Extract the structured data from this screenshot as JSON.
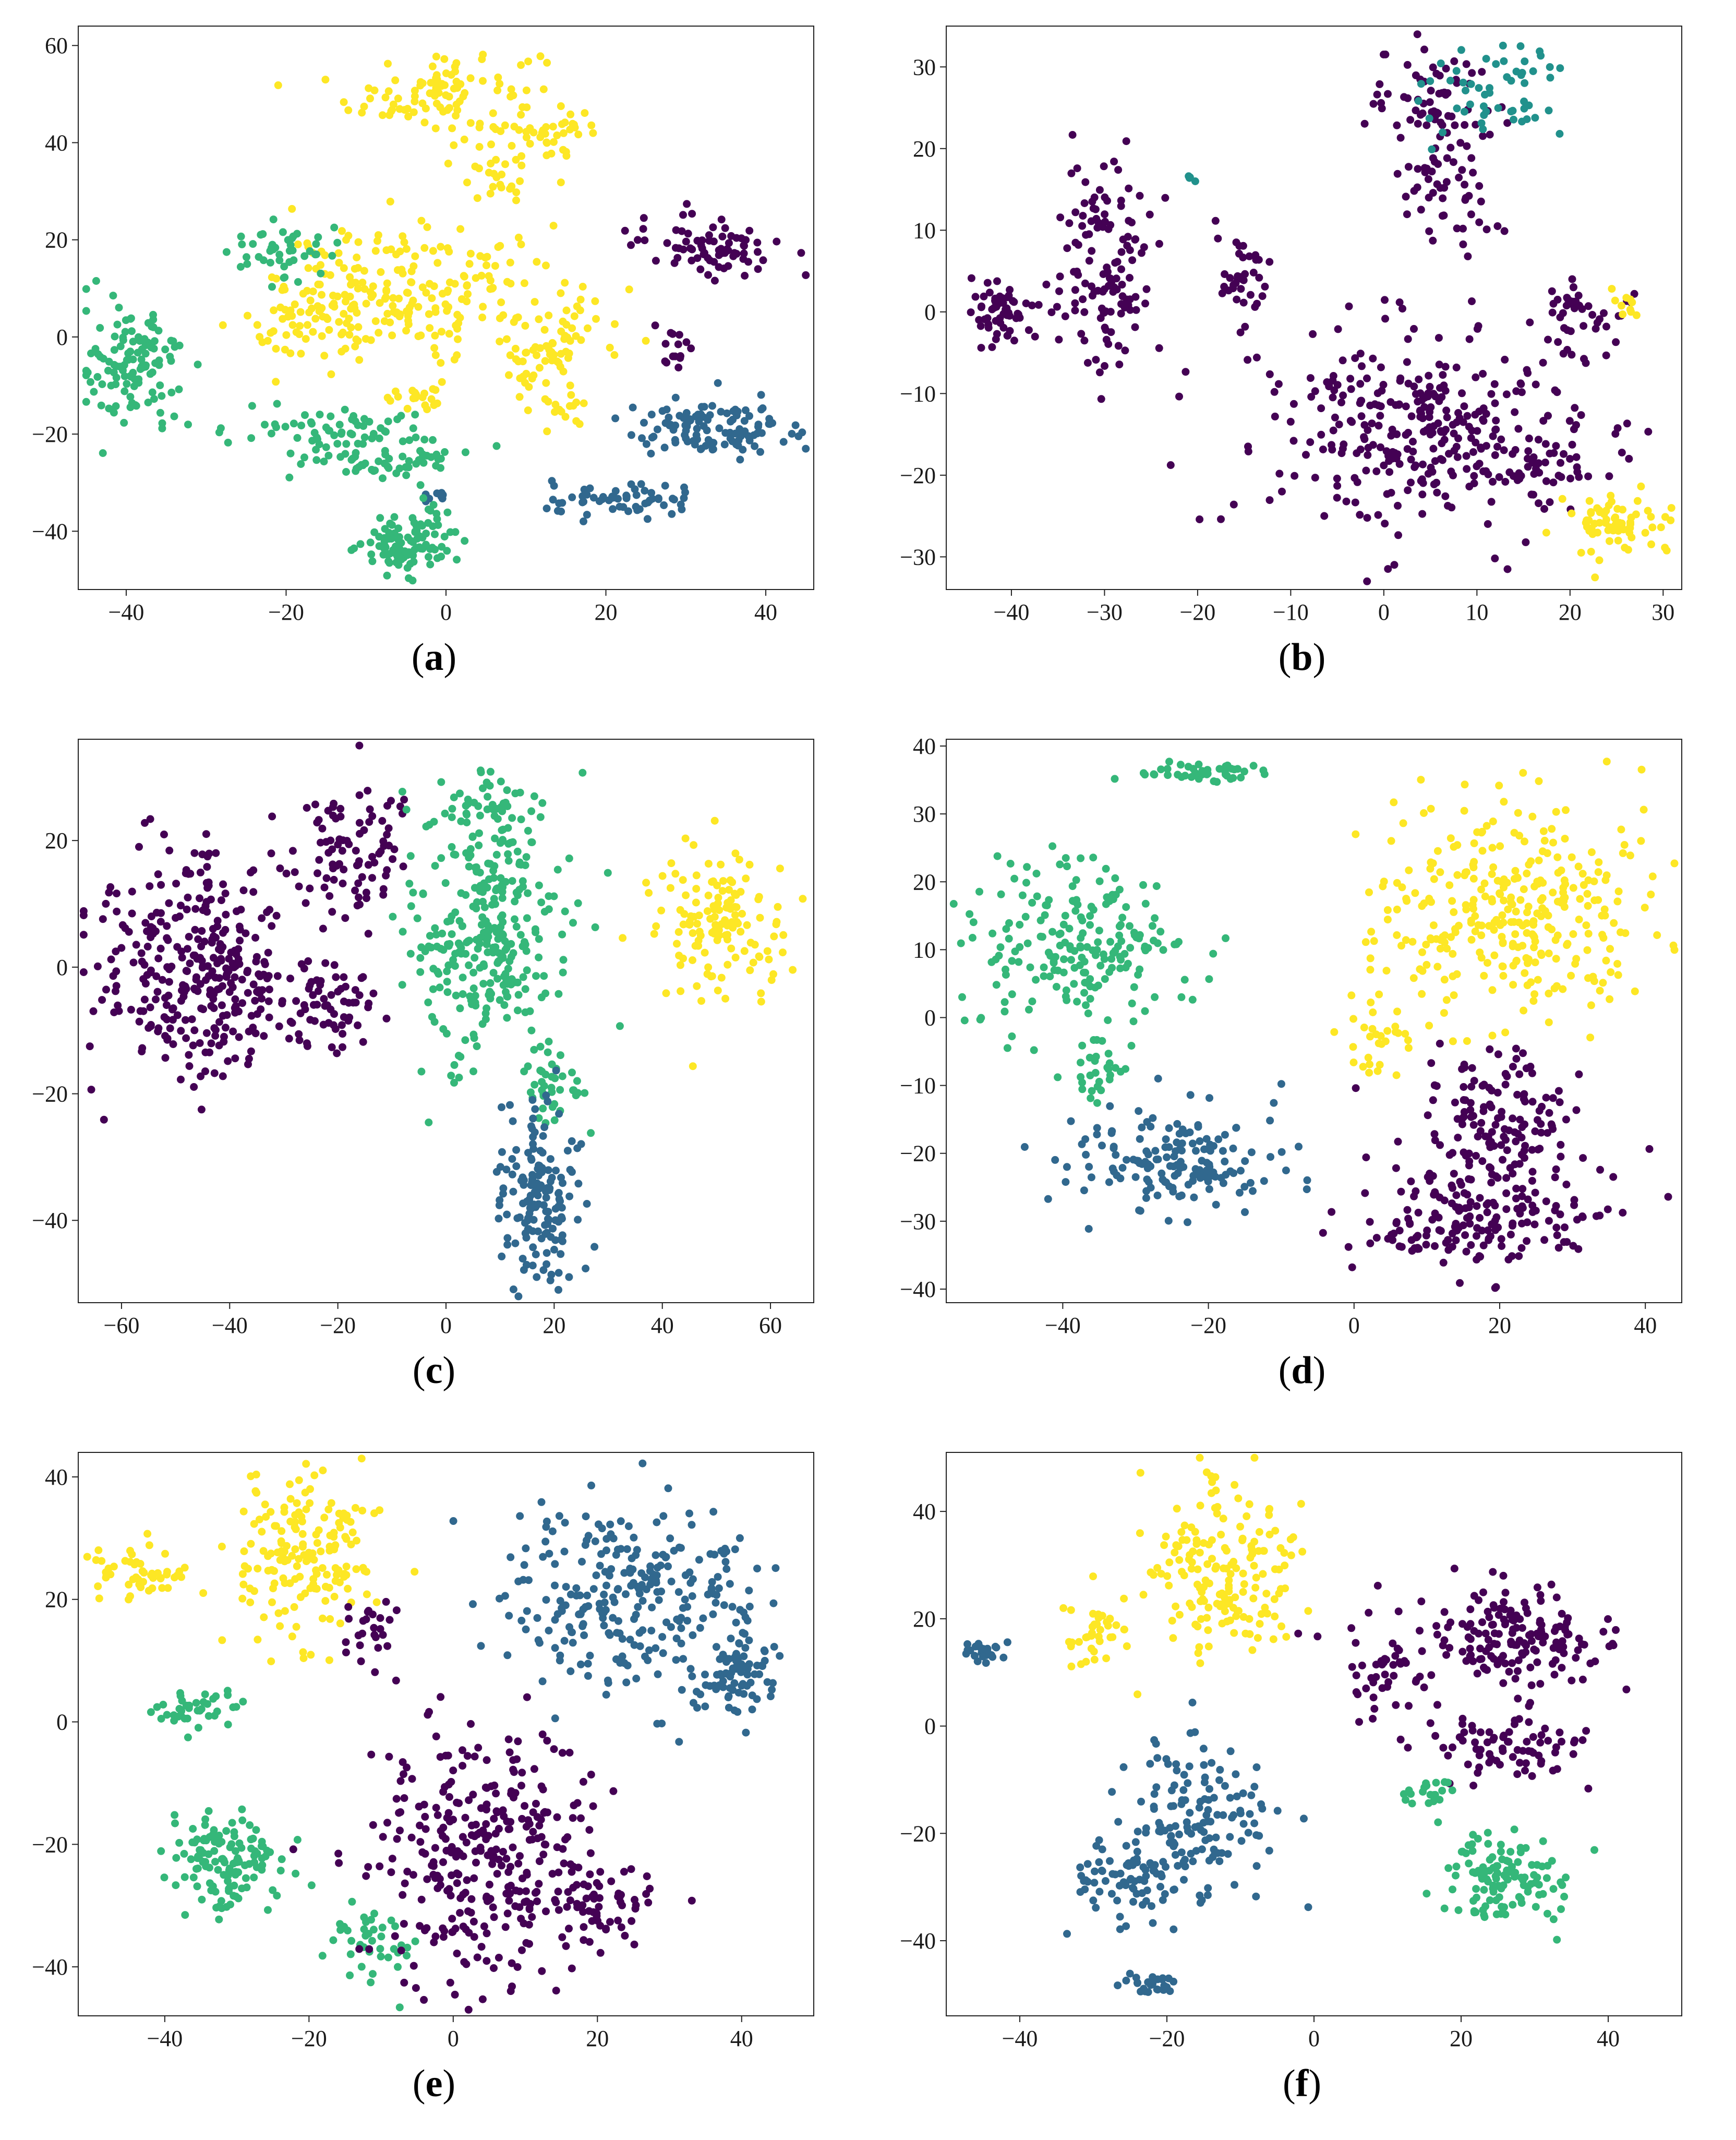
{
  "colors": {
    "purple": "#440154",
    "blue": "#31688e",
    "green": "#35b779",
    "yellow": "#fde725",
    "teal": "#21918c"
  },
  "chart_data": [
    {
      "id": "a",
      "label_open": "(",
      "label_letter": "a",
      "label_close": ")",
      "type": "scatter",
      "xlim": [
        -46,
        46
      ],
      "ylim": [
        -52,
        64
      ],
      "xticks": [
        -40,
        -20,
        0,
        20,
        40
      ],
      "xtick_labels": [
        "−40",
        "−20",
        "0",
        "20",
        "40"
      ],
      "yticks": [
        -40,
        -20,
        0,
        20,
        40,
        60
      ],
      "ytick_labels": [
        "−40",
        "−20",
        "0",
        "20",
        "40",
        "60"
      ],
      "clusters": [
        {
          "color": "yellow",
          "cx": 0,
          "cy": 50,
          "sx": 6,
          "sy": 5,
          "n": 110
        },
        {
          "color": "yellow",
          "cx": 13,
          "cy": 41,
          "sx": 3,
          "sy": 3,
          "n": 35
        },
        {
          "color": "yellow",
          "cx": 6,
          "cy": 32,
          "sx": 2,
          "sy": 2,
          "n": 20
        },
        {
          "color": "yellow",
          "cx": -2,
          "cy": 10,
          "sx": 9,
          "sy": 6,
          "n": 200
        },
        {
          "color": "yellow",
          "cx": -17,
          "cy": 2,
          "sx": 4,
          "sy": 5,
          "n": 70
        },
        {
          "color": "yellow",
          "cx": 13,
          "cy": -3,
          "sx": 3,
          "sy": 5,
          "n": 60
        },
        {
          "color": "yellow",
          "cx": -4,
          "cy": -12,
          "sx": 2,
          "sy": 2,
          "n": 20
        },
        {
          "color": "yellow",
          "cx": 15,
          "cy": -15,
          "sx": 2,
          "sy": 2,
          "n": 15
        },
        {
          "color": "purple",
          "cx": 33,
          "cy": 19,
          "sx": 5,
          "sy": 3,
          "n": 75
        },
        {
          "color": "purple",
          "cx": 28,
          "cy": -2,
          "sx": 1,
          "sy": 3,
          "n": 15
        },
        {
          "color": "blue",
          "cx": 34,
          "cy": -19,
          "sx": 6,
          "sy": 3,
          "n": 110
        },
        {
          "color": "blue",
          "cx": 22,
          "cy": -34,
          "sx": 5,
          "sy": 2,
          "n": 60
        },
        {
          "color": "blue",
          "cx": -1,
          "cy": -33,
          "sx": 1,
          "sy": 1,
          "n": 8
        },
        {
          "color": "green",
          "cx": -39,
          "cy": -6,
          "sx": 3,
          "sy": 6,
          "n": 120
        },
        {
          "color": "green",
          "cx": -20,
          "cy": 17,
          "sx": 4,
          "sy": 3,
          "n": 45
        },
        {
          "color": "green",
          "cx": -14,
          "cy": -19,
          "sx": 6,
          "sy": 2,
          "n": 60
        },
        {
          "color": "green",
          "cx": -8,
          "cy": -25,
          "sx": 6,
          "sy": 2,
          "n": 60
        },
        {
          "color": "green",
          "cx": -5,
          "cy": -43,
          "sx": 3,
          "sy": 3,
          "n": 80
        },
        {
          "color": "green",
          "cx": -2,
          "cy": -37,
          "sx": 1.5,
          "sy": 3,
          "n": 20
        }
      ]
    },
    {
      "id": "b",
      "label_open": "(",
      "label_letter": "b",
      "label_close": ")",
      "type": "scatter",
      "xlim": [
        -47,
        32
      ],
      "ylim": [
        -34,
        35
      ],
      "xticks": [
        -40,
        -30,
        -20,
        -10,
        0,
        10,
        20,
        30
      ],
      "xtick_labels": [
        "−40",
        "−30",
        "−20",
        "−10",
        "0",
        "10",
        "20",
        "30"
      ],
      "yticks": [
        -30,
        -20,
        -10,
        0,
        10,
        20,
        30
      ],
      "ytick_labels": [
        "−30",
        "−20",
        "−10",
        "0",
        "10",
        "20",
        "30"
      ],
      "clusters": [
        {
          "color": "purple",
          "cx": -41,
          "cy": 0,
          "sx": 2,
          "sy": 2,
          "n": 60
        },
        {
          "color": "purple",
          "cx": -30,
          "cy": 5,
          "sx": 3,
          "sy": 6,
          "n": 130
        },
        {
          "color": "purple",
          "cx": -15,
          "cy": 4,
          "sx": 1.5,
          "sy": 3,
          "n": 40
        },
        {
          "color": "purple",
          "cx": 5,
          "cy": 26,
          "sx": 4,
          "sy": 3,
          "n": 60
        },
        {
          "color": "purple",
          "cx": 7,
          "cy": 16,
          "sx": 3,
          "sy": 4,
          "n": 60
        },
        {
          "color": "purple",
          "cx": 5,
          "cy": -14,
          "sx": 9,
          "sy": 6,
          "n": 340
        },
        {
          "color": "purple",
          "cx": 22,
          "cy": 0,
          "sx": 3,
          "sy": 2,
          "n": 40
        },
        {
          "color": "purple",
          "cx": 18,
          "cy": -20,
          "sx": 2,
          "sy": 2,
          "n": 20
        },
        {
          "color": "teal",
          "cx": 12,
          "cy": 27,
          "sx": 4,
          "sy": 3,
          "n": 55
        },
        {
          "color": "teal",
          "cx": -21,
          "cy": 16,
          "sx": 0.5,
          "sy": 0.5,
          "n": 4
        },
        {
          "color": "yellow",
          "cx": 25,
          "cy": -26,
          "sx": 3,
          "sy": 2,
          "n": 70
        },
        {
          "color": "yellow",
          "cx": 26,
          "cy": 1,
          "sx": 1,
          "sy": 1,
          "n": 10
        }
      ]
    },
    {
      "id": "c",
      "label_open": "(",
      "label_letter": "c",
      "label_close": ")",
      "type": "scatter",
      "xlim": [
        -68,
        68
      ],
      "ylim": [
        -53,
        36
      ],
      "xticks": [
        -60,
        -40,
        -20,
        0,
        20,
        40,
        60
      ],
      "xtick_labels": [
        "−60",
        "−40",
        "−20",
        "0",
        "20",
        "40",
        "60"
      ],
      "yticks": [
        -40,
        -20,
        0,
        20
      ],
      "ytick_labels": [
        "−40",
        "−20",
        "0",
        "20"
      ],
      "clusters": [
        {
          "color": "purple",
          "cx": -45,
          "cy": 0,
          "sx": 9,
          "sy": 9,
          "n": 330
        },
        {
          "color": "purple",
          "cx": -17,
          "cy": 18,
          "sx": 5,
          "sy": 6,
          "n": 90
        },
        {
          "color": "purple",
          "cx": -22,
          "cy": -6,
          "sx": 4,
          "sy": 4,
          "n": 60
        },
        {
          "color": "green",
          "cx": 8,
          "cy": 5,
          "sx": 7,
          "sy": 10,
          "n": 290
        },
        {
          "color": "green",
          "cx": 10,
          "cy": 25,
          "sx": 4,
          "sy": 3,
          "n": 50
        },
        {
          "color": "green",
          "cx": 20,
          "cy": -18,
          "sx": 3,
          "sy": 4,
          "n": 40
        },
        {
          "color": "yellow",
          "cx": 50,
          "cy": 7,
          "sx": 6,
          "sy": 6,
          "n": 140
        },
        {
          "color": "blue",
          "cx": 17,
          "cy": -36,
          "sx": 4,
          "sy": 7,
          "n": 160
        }
      ]
    },
    {
      "id": "d",
      "label_open": "(",
      "label_letter": "d",
      "label_close": ")",
      "type": "scatter",
      "xlim": [
        -56,
        45
      ],
      "ylim": [
        -42,
        41
      ],
      "xticks": [
        -40,
        -20,
        0,
        20,
        40
      ],
      "xtick_labels": [
        "−40",
        "−20",
        "0",
        "20",
        "40"
      ],
      "yticks": [
        -40,
        -30,
        -20,
        -10,
        0,
        10,
        20,
        30,
        40
      ],
      "ytick_labels": [
        "−40",
        "−30",
        "−20",
        "−10",
        "0",
        "10",
        "20",
        "30",
        "40"
      ],
      "clusters": [
        {
          "color": "green",
          "cx": -20,
          "cy": 36,
          "sx": 5,
          "sy": 0.7,
          "n": 45
        },
        {
          "color": "green",
          "cx": -38,
          "cy": 11,
          "sx": 7,
          "sy": 6,
          "n": 200
        },
        {
          "color": "green",
          "cx": -35,
          "cy": -7,
          "sx": 2,
          "sy": 3,
          "n": 30
        },
        {
          "color": "yellow",
          "cx": 21,
          "cy": 16,
          "sx": 9,
          "sy": 8,
          "n": 320
        },
        {
          "color": "yellow",
          "cx": 4,
          "cy": -3,
          "sx": 3,
          "sy": 3,
          "n": 30
        },
        {
          "color": "blue",
          "cx": -25,
          "cy": -21,
          "sx": 7,
          "sy": 4,
          "n": 160
        },
        {
          "color": "purple",
          "cx": 20,
          "cy": -15,
          "sx": 6,
          "sy": 6,
          "n": 150
        },
        {
          "color": "purple",
          "cx": 16,
          "cy": -30,
          "sx": 8,
          "sy": 4,
          "n": 170
        }
      ]
    },
    {
      "id": "e",
      "label_open": "(",
      "label_letter": "e",
      "label_close": ")",
      "type": "scatter",
      "xlim": [
        -52,
        50
      ],
      "ylim": [
        -48,
        44
      ],
      "xticks": [
        -40,
        -20,
        0,
        20,
        40
      ],
      "xtick_labels": [
        "−40",
        "−20",
        "0",
        "20",
        "40"
      ],
      "yticks": [
        -40,
        -20,
        0,
        20,
        40
      ],
      "ytick_labels": [
        "−40",
        "−20",
        "0",
        "20",
        "40"
      ],
      "clusters": [
        {
          "color": "yellow",
          "cx": -44,
          "cy": 24,
          "sx": 3,
          "sy": 2,
          "n": 50
        },
        {
          "color": "yellow",
          "cx": -20,
          "cy": 27,
          "sx": 5,
          "sy": 7,
          "n": 170
        },
        {
          "color": "green",
          "cx": -35,
          "cy": 2,
          "sx": 2.5,
          "sy": 1.5,
          "n": 40
        },
        {
          "color": "green",
          "cx": -32,
          "cy": -23,
          "sx": 4,
          "sy": 4,
          "n": 130
        },
        {
          "color": "green",
          "cx": -12,
          "cy": -36,
          "sx": 3,
          "sy": 4,
          "n": 40
        },
        {
          "color": "purple",
          "cx": 4,
          "cy": -22,
          "sx": 8,
          "sy": 10,
          "n": 330
        },
        {
          "color": "purple",
          "cx": 21,
          "cy": -30,
          "sx": 3,
          "sy": 3,
          "n": 50
        },
        {
          "color": "purple",
          "cx": -12,
          "cy": 15,
          "sx": 2,
          "sy": 3,
          "n": 25
        },
        {
          "color": "blue",
          "cx": 25,
          "cy": 20,
          "sx": 8,
          "sy": 8,
          "n": 260
        },
        {
          "color": "blue",
          "cx": 39,
          "cy": 8,
          "sx": 3,
          "sy": 4,
          "n": 80
        }
      ]
    },
    {
      "id": "f",
      "label_open": "(",
      "label_letter": "f",
      "label_close": ")",
      "type": "scatter",
      "xlim": [
        -50,
        50
      ],
      "ylim": [
        -54,
        51
      ],
      "xticks": [
        -40,
        -20,
        0,
        20,
        40
      ],
      "xtick_labels": [
        "−40",
        "−20",
        "0",
        "20",
        "40"
      ],
      "yticks": [
        -40,
        -20,
        0,
        20,
        40
      ],
      "ytick_labels": [
        "−40",
        "−20",
        "0",
        "20",
        "40"
      ],
      "clusters": [
        {
          "color": "yellow",
          "cx": -12,
          "cy": 30,
          "sx": 5,
          "sy": 8,
          "n": 170
        },
        {
          "color": "yellow",
          "cx": -29,
          "cy": 17,
          "sx": 2,
          "sy": 4,
          "n": 40
        },
        {
          "color": "blue",
          "cx": -45,
          "cy": 14,
          "sx": 1.5,
          "sy": 1,
          "n": 25
        },
        {
          "color": "blue",
          "cx": -15,
          "cy": -18,
          "sx": 5,
          "sy": 8,
          "n": 140
        },
        {
          "color": "blue",
          "cx": -26,
          "cy": -28,
          "sx": 4,
          "sy": 4,
          "n": 70
        },
        {
          "color": "blue",
          "cx": -22,
          "cy": -48,
          "sx": 2,
          "sy": 1,
          "n": 30
        },
        {
          "color": "purple",
          "cx": 27,
          "cy": 17,
          "sx": 7,
          "sy": 5,
          "n": 170
        },
        {
          "color": "purple",
          "cx": 27,
          "cy": -4,
          "sx": 5,
          "sy": 3,
          "n": 80
        },
        {
          "color": "purple",
          "cx": 10,
          "cy": 10,
          "sx": 3,
          "sy": 4,
          "n": 40
        },
        {
          "color": "green",
          "cx": 25,
          "cy": -28,
          "sx": 4,
          "sy": 5,
          "n": 120
        },
        {
          "color": "green",
          "cx": 15,
          "cy": -12,
          "sx": 2,
          "sy": 2,
          "n": 20
        }
      ]
    }
  ]
}
